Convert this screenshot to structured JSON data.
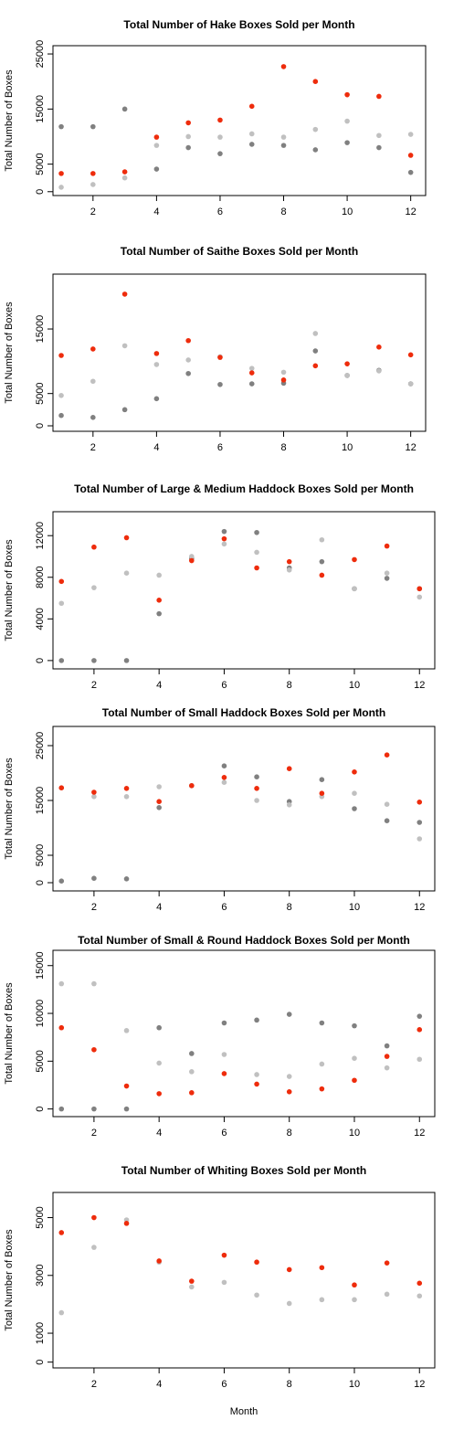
{
  "chart_data": [
    {
      "type": "scatter",
      "title": "Total Number of Hake Boxes Sold per Month",
      "ylabel": "Total Number of Boxes",
      "x": [
        1,
        2,
        3,
        4,
        5,
        6,
        7,
        8,
        9,
        10,
        11,
        12
      ],
      "xlim": [
        0.74,
        12.47
      ],
      "xticks": [
        2,
        4,
        6,
        8,
        10,
        12
      ],
      "ylim": [
        -700,
        26500
      ],
      "yticks": [
        0,
        5000,
        15000,
        25000
      ],
      "series": [
        {
          "color": "#808080",
          "values": [
            11800,
            11800,
            15000,
            4100,
            8000,
            6900,
            8600,
            8400,
            7600,
            8900,
            8000,
            3500
          ]
        },
        {
          "color": "#c0c0c0",
          "values": [
            800,
            1300,
            2500,
            8400,
            10000,
            9900,
            10500,
            9900,
            11300,
            12800,
            10200,
            10400
          ]
        },
        {
          "color": "#ee2c0c",
          "values": [
            3300,
            3300,
            3600,
            9900,
            12500,
            13000,
            15500,
            22700,
            20000,
            17600,
            17300,
            6600
          ]
        }
      ]
    },
    {
      "type": "scatter",
      "title": "Total Number of Saithe Boxes Sold per Month",
      "ylabel": "Total Number of Boxes",
      "x": [
        1,
        2,
        3,
        4,
        5,
        6,
        7,
        8,
        9,
        10,
        11,
        12
      ],
      "xlim": [
        0.74,
        12.47
      ],
      "xticks": [
        2,
        4,
        6,
        8,
        10,
        12
      ],
      "ylim": [
        -850,
        23500
      ],
      "yticks": [
        0,
        5000,
        15000
      ],
      "series": [
        {
          "color": "#808080",
          "values": [
            1600,
            1300,
            2500,
            4200,
            8100,
            6400,
            6500,
            6600,
            11600,
            7800,
            8600,
            6500
          ]
        },
        {
          "color": "#c0c0c0",
          "values": [
            4700,
            6900,
            12400,
            9500,
            10200,
            10700,
            8900,
            8300,
            14300,
            7800,
            8500,
            6500
          ]
        },
        {
          "color": "#ee2c0c",
          "values": [
            10900,
            11900,
            20400,
            11200,
            13200,
            10600,
            8200,
            7100,
            9300,
            9600,
            12200,
            11000
          ]
        }
      ]
    },
    {
      "type": "scatter",
      "title": "Total Number of Large & Medium Haddock Boxes Sold per Month",
      "ylabel": "Total Number of Boxes",
      "x": [
        1,
        2,
        3,
        4,
        5,
        6,
        7,
        8,
        9,
        10,
        11,
        12
      ],
      "xlim": [
        0.74,
        12.47
      ],
      "xticks": [
        2,
        4,
        6,
        8,
        10,
        12
      ],
      "ylim": [
        -800,
        14300
      ],
      "yticks": [
        0,
        4000,
        8000,
        12000
      ],
      "series": [
        {
          "color": "#808080",
          "values": [
            0,
            0,
            0,
            4500,
            9800,
            12400,
            12300,
            8900,
            9500,
            6900,
            7900,
            6900
          ]
        },
        {
          "color": "#c0c0c0",
          "values": [
            5500,
            7000,
            8400,
            8200,
            10000,
            11200,
            10400,
            8700,
            11600,
            6900,
            8400,
            6100
          ]
        },
        {
          "color": "#ee2c0c",
          "values": [
            7600,
            10900,
            11800,
            5800,
            9600,
            11700,
            8900,
            9500,
            8200,
            9700,
            11000,
            6900
          ]
        }
      ]
    },
    {
      "type": "scatter",
      "title": "Total Number of Small Haddock Boxes Sold per Month",
      "ylabel": "Total Number of Boxes",
      "x": [
        1,
        2,
        3,
        4,
        5,
        6,
        7,
        8,
        9,
        10,
        11,
        12
      ],
      "xlim": [
        0.74,
        12.47
      ],
      "xticks": [
        2,
        4,
        6,
        8,
        10,
        12
      ],
      "ylim": [
        -1500,
        28500
      ],
      "yticks": [
        0,
        5000,
        15000,
        25000
      ],
      "series": [
        {
          "color": "#808080",
          "values": [
            300,
            800,
            700,
            13700,
            17700,
            21300,
            19300,
            14800,
            18800,
            13500,
            11300,
            11000
          ]
        },
        {
          "color": "#c0c0c0",
          "values": [
            17300,
            15700,
            15700,
            17500,
            17700,
            18300,
            15000,
            14200,
            15700,
            16300,
            14300,
            8000
          ]
        },
        {
          "color": "#ee2c0c",
          "values": [
            17300,
            16500,
            17200,
            14800,
            17700,
            19200,
            17200,
            20800,
            16300,
            20200,
            23300,
            14700
          ]
        }
      ]
    },
    {
      "type": "scatter",
      "title": "Total Number of Small & Round Haddock Boxes Sold per Month",
      "ylabel": "Total Number of Boxes",
      "x": [
        1,
        2,
        3,
        4,
        5,
        6,
        7,
        8,
        9,
        10,
        11,
        12
      ],
      "xlim": [
        0.74,
        12.47
      ],
      "xticks": [
        2,
        4,
        6,
        8,
        10,
        12
      ],
      "ylim": [
        -800,
        16600
      ],
      "yticks": [
        0,
        5000,
        10000,
        15000
      ],
      "series": [
        {
          "color": "#808080",
          "values": [
            0,
            0,
            0,
            8500,
            5800,
            9000,
            9300,
            9900,
            9000,
            8700,
            6600,
            9700
          ]
        },
        {
          "color": "#c0c0c0",
          "values": [
            13100,
            13100,
            8200,
            4800,
            3900,
            5700,
            3600,
            3400,
            4700,
            5300,
            4300,
            5200
          ]
        },
        {
          "color": "#ee2c0c",
          "values": [
            8500,
            6200,
            2400,
            1600,
            1700,
            3700,
            2600,
            1800,
            2100,
            3000,
            5500,
            8300
          ]
        }
      ]
    },
    {
      "type": "scatter",
      "title": "Total Number of Whiting Boxes Sold per Month",
      "ylabel": "Total Number of Boxes",
      "xlabel": "Month",
      "x": [
        1,
        2,
        3,
        4,
        5,
        6,
        7,
        8,
        9,
        10,
        11,
        12
      ],
      "xlim": [
        0.74,
        12.47
      ],
      "xticks": [
        2,
        4,
        6,
        8,
        10,
        12
      ],
      "ylim": [
        -200,
        5870
      ],
      "yticks": [
        0,
        1000,
        3000,
        5000
      ],
      "series": [
        {
          "color": "#c0c0c0",
          "values": [
            1710,
            3970,
            4920,
            3460,
            2600,
            2760,
            2320,
            2030,
            2160,
            2160,
            2350,
            2290
          ]
        },
        {
          "color": "#ee2c0c",
          "values": [
            4480,
            5000,
            4800,
            3500,
            2800,
            3700,
            3460,
            3200,
            3270,
            2670,
            3430,
            2730
          ]
        }
      ]
    }
  ]
}
